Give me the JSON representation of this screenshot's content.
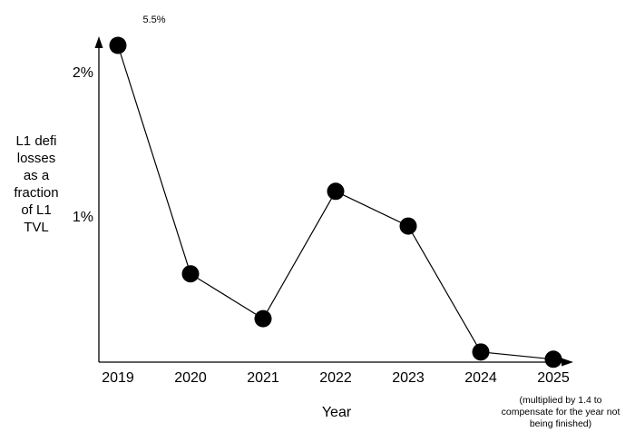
{
  "chart_data": {
    "type": "line",
    "title": "",
    "xlabel": "Year",
    "ylabel": "L1 defi losses as a fraction of L1 TVL",
    "ylabel_lines": [
      "L1 defi",
      "losses",
      "as a",
      "fraction",
      "of L1",
      "TVL"
    ],
    "categories": [
      "2019",
      "2020",
      "2021",
      "2022",
      "2023",
      "2024",
      "2025"
    ],
    "values": [
      5.5,
      0.61,
      0.3,
      1.18,
      0.94,
      0.07,
      0.02
    ],
    "unit": "%",
    "y_ticks": [
      {
        "value": 2,
        "label": "2%"
      },
      {
        "value": 1,
        "label": "1%"
      }
    ],
    "ylim": [
      0,
      2.25
    ],
    "grid": false,
    "legend": "none",
    "line_color": "#000000",
    "marker_color": "#000000",
    "annotations": [
      {
        "text": "5.5%",
        "target_year": "2019",
        "note": "2019 value is off-scale; point drawn clipped at top of axis"
      }
    ],
    "footnote_lines": [
      "(multiplied by 1.4 to",
      "compensate for the year not",
      "being finished)"
    ],
    "footnote_target_year": "2025"
  }
}
